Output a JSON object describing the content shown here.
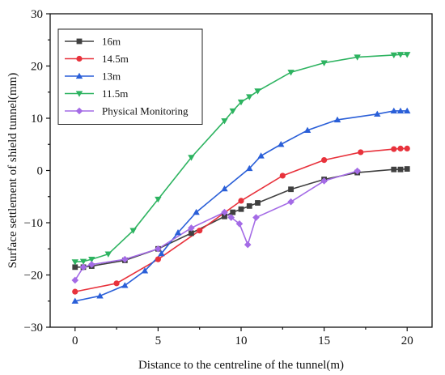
{
  "chart_data": {
    "type": "line",
    "title": "",
    "xlabel": "Distance to the centreline of the tunnel(m)",
    "ylabel": "Surface settlement of shield tunnel(mm)",
    "xlim": [
      -1.5,
      21.5
    ],
    "ylim": [
      -30,
      30
    ],
    "xticks": [
      0,
      5,
      10,
      15,
      20
    ],
    "yticks": [
      -30,
      -20,
      -10,
      0,
      10,
      20,
      30
    ],
    "grid": false,
    "legend_position": "top-left",
    "series": [
      {
        "name": "16m",
        "color": "#404040",
        "marker": "square",
        "x": [
          0,
          0.5,
          1,
          3,
          5,
          7,
          9,
          9.5,
          10,
          10.5,
          11,
          13,
          15,
          17,
          19.2,
          19.6,
          20
        ],
        "y": [
          -18.5,
          -18.5,
          -18.3,
          -17.2,
          -15.0,
          -12.0,
          -8.8,
          -8.0,
          -7.4,
          -6.8,
          -6.2,
          -3.6,
          -1.7,
          -0.4,
          0.2,
          0.2,
          0.3
        ]
      },
      {
        "name": "14.5m",
        "color": "#e8323c",
        "marker": "circle",
        "x": [
          0,
          2.5,
          5,
          7.5,
          10,
          12.5,
          15,
          17.2,
          19.2,
          19.6,
          20
        ],
        "y": [
          -23.2,
          -21.6,
          -17.0,
          -11.5,
          -5.8,
          -1.0,
          2.0,
          3.5,
          4.1,
          4.2,
          4.2
        ]
      },
      {
        "name": "13m",
        "color": "#2a5fd8",
        "marker": "triangle-up",
        "x": [
          0,
          1.5,
          3,
          4.2,
          5.2,
          6.2,
          7.3,
          9,
          10.5,
          11.2,
          12.4,
          14,
          15.8,
          18.2,
          19.2,
          19.6,
          20
        ],
        "y": [
          -25.0,
          -24.0,
          -22.0,
          -19.2,
          -15.9,
          -11.9,
          -8.0,
          -3.5,
          0.4,
          2.8,
          5.0,
          7.7,
          9.7,
          10.8,
          11.4,
          11.4,
          11.4
        ]
      },
      {
        "name": "11.5m",
        "color": "#2db360",
        "marker": "triangle-down",
        "x": [
          0,
          0.5,
          1,
          2,
          3.5,
          5,
          7,
          9,
          9.5,
          10,
          10.5,
          11,
          13,
          15,
          17,
          19.2,
          19.6,
          20
        ],
        "y": [
          -17.5,
          -17.4,
          -17.0,
          -16.0,
          -11.5,
          -5.5,
          2.5,
          9.5,
          11.4,
          13.1,
          14.1,
          15.2,
          18.8,
          20.6,
          21.7,
          22.1,
          22.2,
          22.2
        ]
      },
      {
        "name": "Physical Monitoring",
        "color": "#a46be6",
        "marker": "diamond",
        "x": [
          0,
          0.5,
          1,
          3,
          5,
          7,
          9,
          9.4,
          9.9,
          10.4,
          10.9,
          13,
          15,
          17
        ],
        "y": [
          -21.0,
          -18.5,
          -18.0,
          -17.0,
          -15.0,
          -11.0,
          -8.0,
          -9.0,
          -10.2,
          -14.2,
          -9.0,
          -6.0,
          -2.0,
          -0.1
        ]
      }
    ]
  }
}
